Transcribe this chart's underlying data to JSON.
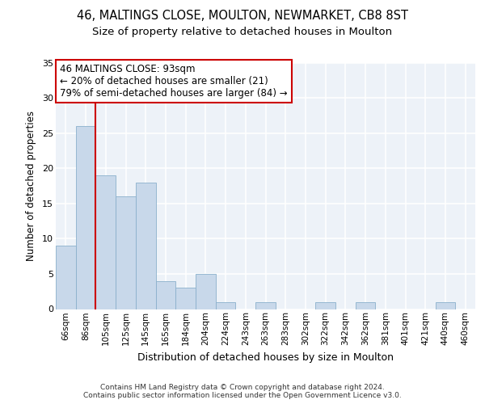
{
  "title1": "46, MALTINGS CLOSE, MOULTON, NEWMARKET, CB8 8ST",
  "title2": "Size of property relative to detached houses in Moulton",
  "xlabel": "Distribution of detached houses by size in Moulton",
  "ylabel": "Number of detached properties",
  "categories": [
    "66sqm",
    "86sqm",
    "105sqm",
    "125sqm",
    "145sqm",
    "165sqm",
    "184sqm",
    "204sqm",
    "224sqm",
    "243sqm",
    "263sqm",
    "283sqm",
    "302sqm",
    "322sqm",
    "342sqm",
    "362sqm",
    "381sqm",
    "401sqm",
    "421sqm",
    "440sqm",
    "460sqm"
  ],
  "values": [
    9,
    26,
    19,
    16,
    18,
    4,
    3,
    5,
    1,
    0,
    1,
    0,
    0,
    1,
    0,
    1,
    0,
    0,
    0,
    1,
    0
  ],
  "bar_color": "#c8d8ea",
  "bar_edgecolor": "#8ab0cc",
  "vline_color": "#cc0000",
  "ylim": [
    0,
    35
  ],
  "yticks": [
    0,
    5,
    10,
    15,
    20,
    25,
    30,
    35
  ],
  "annotation_box_text": "46 MALTINGS CLOSE: 93sqm\n← 20% of detached houses are smaller (21)\n79% of semi-detached houses are larger (84) →",
  "box_edgecolor": "#cc0000",
  "footnote": "Contains HM Land Registry data © Crown copyright and database right 2024.\nContains public sector information licensed under the Open Government Licence v3.0.",
  "bg_color": "#edf2f8",
  "grid_color": "#ffffff",
  "title1_fontsize": 10.5,
  "title2_fontsize": 9.5,
  "xlabel_fontsize": 9,
  "ylabel_fontsize": 8.5,
  "footnote_fontsize": 6.5,
  "annot_fontsize": 8.5,
  "tick_fontsize": 7.5
}
